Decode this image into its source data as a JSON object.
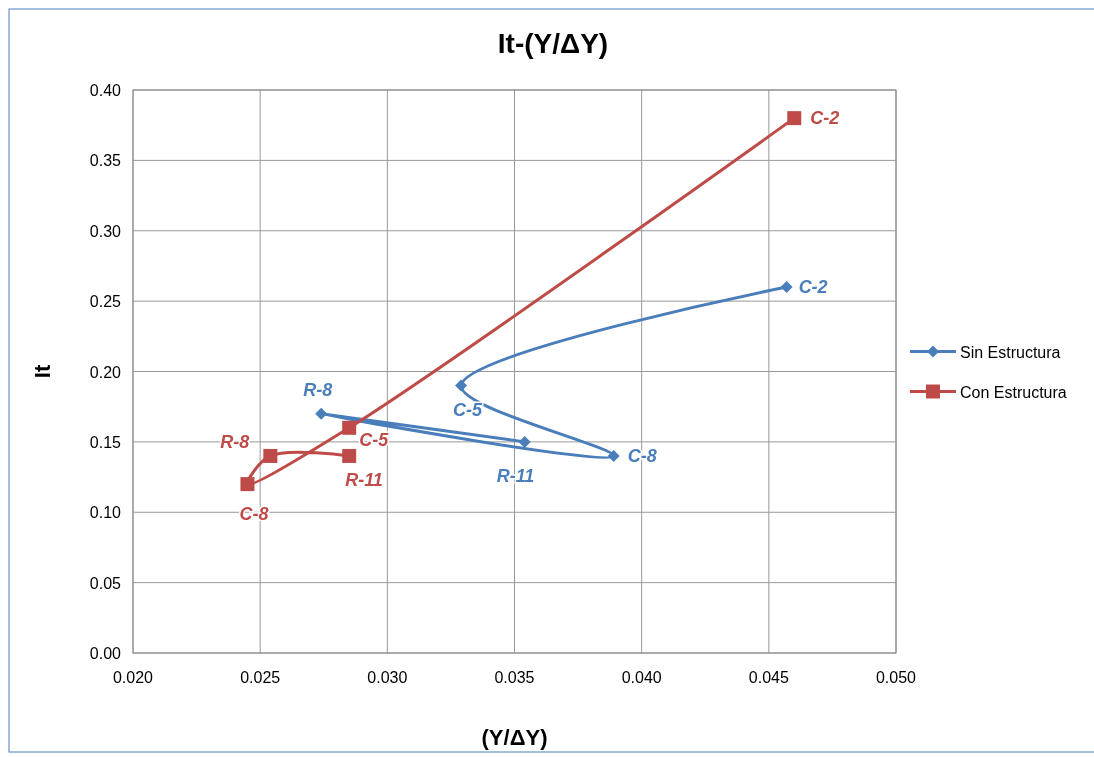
{
  "chart_data": {
    "type": "line",
    "title": "It-(Y/ΔY)",
    "xlabel": "(Y/ΔY)",
    "ylabel": "It",
    "series": [
      {
        "name": "Sin Estructura",
        "color": "#4a7ebb",
        "marker": "diamond",
        "x": [
          0.0457,
          0.0329,
          0.0389,
          0.0274,
          0.0354
        ],
        "values": [
          0.26,
          0.19,
          0.14,
          0.17,
          0.15
        ]
      },
      {
        "name": "Con Estructura",
        "color": "#be4b48",
        "marker": "square",
        "x": [
          0.046,
          0.0285,
          0.0245,
          0.0254,
          0.0285
        ],
        "values": [
          0.38,
          0.16,
          0.12,
          0.14,
          0.14
        ]
      }
    ],
    "annotations": [
      {
        "text": "C-2",
        "x": 0.0457,
        "y": 0.26
      },
      {
        "text": "C-5",
        "x": 0.0329,
        "y": 0.19
      },
      {
        "text": "C-8",
        "x": 0.0389,
        "y": 0.14
      },
      {
        "text": "R-8",
        "x": 0.0274,
        "y": 0.17
      },
      {
        "text": "R-11",
        "x": 0.0354,
        "y": 0.15
      },
      {
        "text": "C-2",
        "x": 0.046,
        "y": 0.38
      },
      {
        "text": "C-5",
        "x": 0.0285,
        "y": 0.16
      },
      {
        "text": "C-8",
        "x": 0.0245,
        "y": 0.12
      },
      {
        "text": "R-8",
        "x": 0.0254,
        "y": 0.14
      },
      {
        "text": "R-11",
        "x": 0.0285,
        "y": 0.14
      }
    ],
    "xlim": [
      0.02,
      0.05
    ],
    "xticks": [
      {
        "value": 0.02,
        "label": "0.020"
      },
      {
        "value": 0.025,
        "label": "0.025"
      },
      {
        "value": 0.03,
        "label": "0.030"
      },
      {
        "value": 0.035,
        "label": "0.035"
      },
      {
        "value": 0.04,
        "label": "0.040"
      },
      {
        "value": 0.045,
        "label": "0.045"
      },
      {
        "value": 0.05,
        "label": "0.050"
      }
    ],
    "ylim": [
      0,
      0.4
    ],
    "yticks": [
      {
        "value": 0,
        "label": "0.00"
      },
      {
        "value": 0.05,
        "label": "0.05"
      },
      {
        "value": 0.1,
        "label": "0.10"
      },
      {
        "value": 0.15,
        "label": "0.15"
      },
      {
        "value": 0.2,
        "label": "0.20"
      },
      {
        "value": 0.25,
        "label": "0.25"
      },
      {
        "value": 0.3,
        "label": "0.30"
      },
      {
        "value": 0.35,
        "label": "0.35"
      },
      {
        "value": 0.4,
        "label": "0.40"
      }
    ],
    "grid": true,
    "legend": "right",
    "line_style": "solid"
  }
}
